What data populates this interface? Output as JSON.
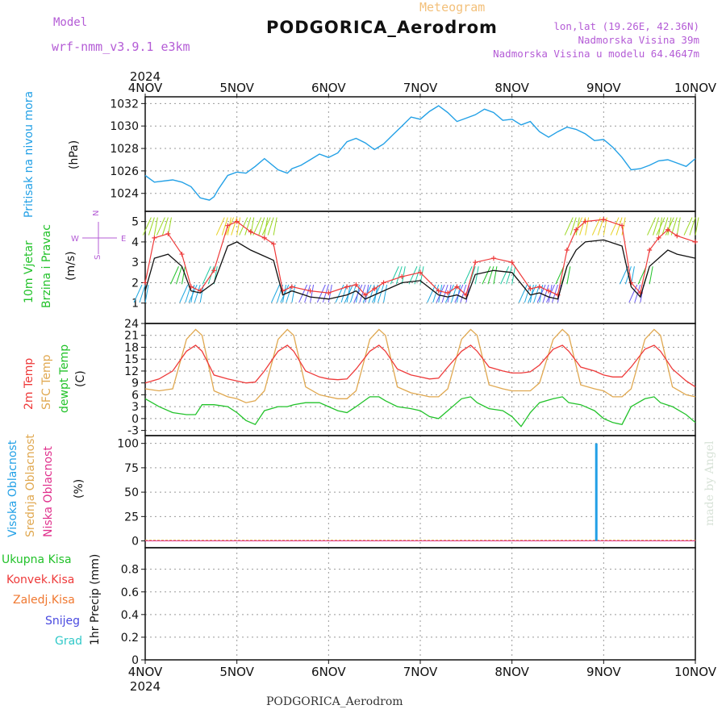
{
  "header": {
    "model_label": "Model",
    "model_name": "wrf-nmm_v3.9.1 e3km",
    "meteogram_label": "Meteogram",
    "station": "PODGORICA_Aerodrom",
    "lonlat": "lon,lat (19.26E, 42.36N)",
    "altitude": "Nadmorska Visina 39m",
    "model_altitude": "Nadmorska Visina u modelu 64.4647m"
  },
  "footer": {
    "station": "PODGORICA_Aerodrom",
    "credit": "made by Angel"
  },
  "axis": {
    "year": "2024",
    "days": [
      "4NOV",
      "5NOV",
      "6NOV",
      "7NOV",
      "8NOV",
      "9NOV",
      "10NOV"
    ]
  },
  "colors": {
    "pressure": "#22a0e6",
    "wind_speed": "#111111",
    "wind_gust": "#ee3a3a",
    "temp_2m": "#ee3a3a",
    "temp_sfc": "#e0a850",
    "dewpoint": "#22c22a",
    "cloud_high": "#22a0e6",
    "cloud_mid": "#e0a850",
    "cloud_low": "#e0308c",
    "precip_total": "#22c22a",
    "precip_conv": "#ee3a3a",
    "precip_frz": "#f07830",
    "precip_snow": "#4a4ae0",
    "precip_hail": "#30c8c8",
    "purple": "#b45cd6"
  },
  "chart_data": [
    {
      "type": "line",
      "panel": "pressure",
      "ylabel_name": "Pritisak na nivou mora",
      "ylabel_unit": "(hPa)",
      "ylim": [
        1022.4,
        1032.6
      ],
      "yticks": [
        1024,
        1026,
        1028,
        1030,
        1032
      ],
      "x": [
        0,
        0.1,
        0.3,
        0.4,
        0.5,
        0.6,
        0.7,
        0.75,
        0.8,
        0.9,
        1,
        1.1,
        1.2,
        1.3,
        1.45,
        1.55,
        1.6,
        1.7,
        1.8,
        1.9,
        2,
        2.1,
        2.2,
        2.3,
        2.4,
        2.5,
        2.6,
        2.7,
        2.8,
        2.9,
        3,
        3.1,
        3.2,
        3.3,
        3.4,
        3.5,
        3.6,
        3.7,
        3.8,
        3.9,
        4,
        4.1,
        4.2,
        4.3,
        4.4,
        4.5,
        4.6,
        4.7,
        4.8,
        4.9,
        5,
        5.1,
        5.2,
        5.3,
        5.4,
        5.5,
        5.6,
        5.7,
        5.8,
        5.9,
        6
      ],
      "series": [
        {
          "name": "",
          "values": [
            1025.6,
            1025.0,
            1025.2,
            1025.0,
            1024.6,
            1023.6,
            1023.4,
            1023.7,
            1024.4,
            1025.6,
            1025.9,
            1025.8,
            1026.4,
            1027.1,
            1026.1,
            1025.8,
            1026.2,
            1026.5,
            1027.0,
            1027.5,
            1027.2,
            1027.6,
            1028.6,
            1028.9,
            1028.5,
            1027.9,
            1028.4,
            1029.2,
            1030.0,
            1030.8,
            1030.6,
            1031.3,
            1031.8,
            1031.2,
            1030.4,
            1030.7,
            1031.0,
            1031.5,
            1031.2,
            1030.5,
            1030.6,
            1030.1,
            1030.4,
            1029.5,
            1029.0,
            1029.5,
            1029.9,
            1029.7,
            1029.3,
            1028.7,
            1028.8,
            1028.1,
            1027.2,
            1026.1,
            1026.2,
            1026.5,
            1026.9,
            1027.0,
            1026.7,
            1026.4,
            1027.1
          ]
        }
      ]
    },
    {
      "type": "line",
      "panel": "wind",
      "ylabel_name": "10m Vjetar",
      "ylabel_name2": "Brzina i Pravac",
      "ylabel_unit": "(m/s)",
      "compass": [
        "N",
        "W",
        "E",
        "S"
      ],
      "ylim": [
        0,
        5.5
      ],
      "yticks": [
        1,
        2,
        3,
        4,
        5
      ],
      "x": [
        0,
        0.1,
        0.25,
        0.4,
        0.5,
        0.6,
        0.75,
        0.9,
        1.0,
        1.15,
        1.3,
        1.4,
        1.5,
        1.6,
        1.8,
        2.0,
        2.2,
        2.3,
        2.4,
        2.5,
        2.6,
        2.8,
        3.0,
        3.2,
        3.3,
        3.4,
        3.5,
        3.6,
        3.8,
        4.0,
        4.2,
        4.3,
        4.4,
        4.5,
        4.6,
        4.7,
        4.8,
        5.0,
        5.2,
        5.3,
        5.4,
        5.5,
        5.6,
        5.7,
        5.8,
        6.0
      ],
      "series": [
        {
          "name": "speed",
          "values": [
            1.6,
            3.2,
            3.4,
            2.8,
            1.6,
            1.5,
            2.0,
            3.8,
            4.0,
            3.6,
            3.3,
            3.1,
            1.4,
            1.6,
            1.3,
            1.2,
            1.4,
            1.6,
            1.2,
            1.4,
            1.6,
            2.0,
            2.1,
            1.4,
            1.3,
            1.4,
            1.2,
            2.4,
            2.6,
            2.5,
            1.4,
            1.5,
            1.3,
            1.2,
            2.8,
            3.6,
            4.0,
            4.1,
            3.8,
            1.8,
            1.3,
            2.8,
            3.2,
            3.6,
            3.4,
            3.2
          ]
        },
        {
          "name": "gust",
          "values": [
            2.0,
            4.2,
            4.4,
            3.4,
            1.8,
            1.6,
            2.6,
            4.8,
            5.0,
            4.5,
            4.2,
            3.9,
            1.6,
            1.8,
            1.6,
            1.5,
            1.8,
            1.9,
            1.4,
            1.7,
            2.0,
            2.3,
            2.5,
            1.6,
            1.5,
            1.8,
            1.4,
            3.0,
            3.2,
            3.0,
            1.7,
            1.8,
            1.6,
            1.4,
            3.6,
            4.6,
            5.0,
            5.1,
            4.8,
            2.0,
            1.5,
            3.6,
            4.2,
            4.6,
            4.3,
            4.0
          ]
        }
      ]
    },
    {
      "type": "line",
      "panel": "temperature",
      "ylabel_t2m": "2m Temp",
      "ylabel_sfc": "SFC Temp",
      "ylabel_dew": "dewpt Temp",
      "ylabel_unit": "(C)",
      "ylim": [
        -4.3,
        24
      ],
      "yticks": [
        -3,
        0,
        3,
        6,
        9,
        12,
        15,
        18,
        21,
        24
      ],
      "x": [
        0,
        0.15,
        0.3,
        0.45,
        0.55,
        0.62,
        0.75,
        0.9,
        1.0,
        1.1,
        1.2,
        1.3,
        1.45,
        1.55,
        1.62,
        1.75,
        1.9,
        2.0,
        2.1,
        2.2,
        2.3,
        2.45,
        2.55,
        2.62,
        2.75,
        2.9,
        3.0,
        3.1,
        3.2,
        3.3,
        3.45,
        3.55,
        3.62,
        3.75,
        3.9,
        4.0,
        4.1,
        4.2,
        4.3,
        4.45,
        4.55,
        4.62,
        4.75,
        4.9,
        5.0,
        5.1,
        5.2,
        5.3,
        5.45,
        5.55,
        5.62,
        5.75,
        5.9,
        6.0
      ],
      "series": [
        {
          "name": "t2m",
          "values": [
            9,
            10,
            12,
            17,
            18.5,
            17,
            11,
            10,
            9.5,
            9,
            9.2,
            12,
            17,
            18.5,
            17,
            12,
            10.5,
            10,
            9.8,
            10,
            12.5,
            17,
            18.5,
            17,
            12.5,
            11,
            10.5,
            10,
            10.2,
            13,
            17,
            18.5,
            17,
            13,
            12,
            11.5,
            11.5,
            11.8,
            13.5,
            17.5,
            18.5,
            17,
            13,
            12,
            11,
            10.5,
            10.5,
            13,
            17.5,
            18.5,
            17,
            12.5,
            9.5,
            8
          ]
        },
        {
          "name": "sfc",
          "values": [
            7.5,
            7,
            7.5,
            20,
            22.5,
            21,
            7,
            5.5,
            5,
            4,
            4.5,
            7,
            20,
            22.5,
            21,
            8,
            6,
            5.5,
            5,
            5,
            7,
            20,
            22.5,
            21,
            8,
            6.5,
            6,
            5.5,
            5.5,
            7.5,
            20,
            22.5,
            21,
            8.5,
            7.5,
            7,
            7,
            7,
            9,
            20,
            22.5,
            21,
            8.5,
            7.5,
            7,
            5.5,
            5.5,
            7.5,
            20,
            22.5,
            21,
            8,
            6,
            5.5
          ]
        },
        {
          "name": "dew",
          "values": [
            5,
            3,
            1.5,
            1,
            1,
            3.5,
            3.5,
            3,
            1.5,
            -0.5,
            -1.5,
            2,
            3,
            3,
            3.5,
            4,
            4,
            3,
            2,
            1.5,
            3,
            5.5,
            5.5,
            4.5,
            3,
            2.5,
            2,
            0.5,
            0,
            2,
            5,
            5.5,
            4,
            2.5,
            2,
            0.5,
            -2,
            1.5,
            4,
            5,
            5.5,
            4,
            3.5,
            2,
            0,
            -1,
            -1.5,
            3,
            5,
            5.5,
            4,
            3,
            1,
            -1
          ]
        }
      ]
    },
    {
      "type": "bar",
      "panel": "clouds",
      "ylabel_high": "Visoka Oblacnost",
      "ylabel_mid": "Srednja Oblacnost",
      "ylabel_low": "Niska Oblacnost",
      "ylabel_unit": "(%)",
      "ylim": [
        -7,
        108
      ],
      "yticks": [
        0,
        25,
        50,
        75,
        100
      ],
      "series": [
        {
          "name": "high",
          "x": [
            4.92
          ],
          "values": [
            100
          ]
        }
      ]
    },
    {
      "type": "bar",
      "panel": "precipitation",
      "legend": [
        "Ukupna Kisa",
        "Konvek.Kisa",
        "Zaledj.Kisa",
        "Snijeg",
        "Grad"
      ],
      "ylabel_unit": "1hr Precip (mm)",
      "ylim": [
        0,
        0.99
      ],
      "yticks": [
        0,
        0.2,
        0.4,
        0.6,
        0.8
      ],
      "series": []
    }
  ]
}
